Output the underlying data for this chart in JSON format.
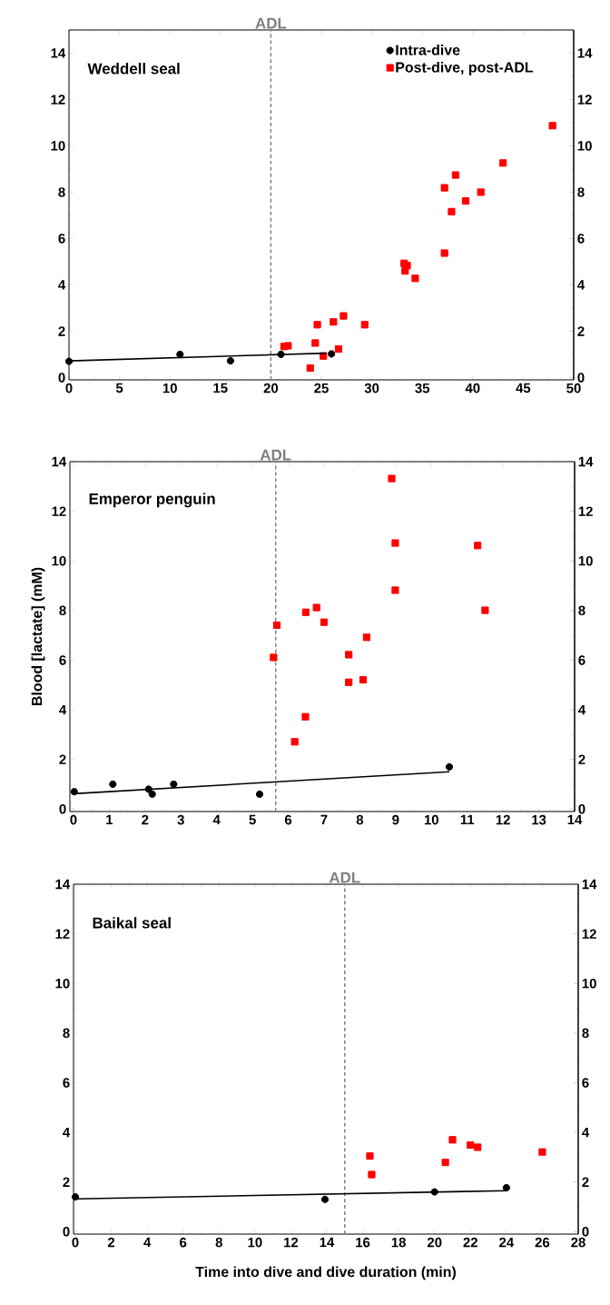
{
  "chart_data": [
    {
      "type": "scatter",
      "title": "Weddell seal",
      "xlim": [
        0,
        50
      ],
      "ylim": [
        -0.1,
        15
      ],
      "y2lim": [
        -0.1,
        15
      ],
      "xticks": [
        0,
        5,
        10,
        15,
        20,
        25,
        30,
        35,
        40,
        45,
        50
      ],
      "yticks": [
        0,
        2,
        4,
        6,
        8,
        10,
        12,
        14
      ],
      "y2ticks": [
        0,
        2,
        4,
        6,
        8,
        10,
        12,
        14
      ],
      "legend": "top right",
      "grid": false,
      "ref_lines": [
        {
          "axis": "x",
          "value": 20,
          "label": "ADL",
          "color": "#808080",
          "line_style": "dashed"
        }
      ],
      "series": [
        {
          "name": "Intra-dive",
          "marker": "circle",
          "color": "#000000",
          "x": [
            0,
            11,
            16,
            21,
            26
          ],
          "values": [
            0.7,
            1.0,
            0.72,
            1.0,
            1.02
          ]
        },
        {
          "name": "Post-dive, post-ADL",
          "marker": "square",
          "color": "#ff0000",
          "x": [
            21.3,
            21.7,
            24.6,
            24.4,
            23.9,
            25.2,
            26.2,
            26.7,
            27.2,
            29.3,
            33.2,
            33.5,
            33.3,
            34.3,
            37.2,
            37.2,
            37.9,
            38.3,
            39.3,
            40.8,
            43.0,
            47.9
          ],
          "values": [
            1.34,
            1.37,
            2.28,
            1.49,
            0.41,
            0.93,
            2.4,
            1.23,
            2.66,
            2.28,
            4.93,
            4.83,
            4.6,
            4.28,
            5.37,
            8.19,
            7.16,
            8.74,
            7.62,
            8.0,
            9.26,
            10.87
          ]
        },
        {
          "type": "line",
          "marker": "none",
          "line_style": "solid",
          "color": "#000000",
          "x": [
            0,
            25.5
          ],
          "values": [
            0.72,
            1.05
          ]
        }
      ]
    },
    {
      "type": "scatter",
      "title": "Emperor penguin",
      "ylabel": "Blood [lactate] (mM)",
      "xlim": [
        -0.1,
        14
      ],
      "ylim": [
        -0.1,
        14
      ],
      "y2lim": [
        -0.1,
        14
      ],
      "xticks": [
        0,
        1,
        2,
        3,
        4,
        5,
        6,
        7,
        8,
        9,
        10,
        11,
        12,
        13,
        14
      ],
      "yticks": [
        0,
        2,
        4,
        6,
        8,
        10,
        12,
        14
      ],
      "y2ticks": [
        0,
        2,
        4,
        6,
        8,
        10,
        12,
        14
      ],
      "grid": false,
      "ref_lines": [
        {
          "axis": "x",
          "value": 5.65,
          "label": "ADL",
          "color": "#808080",
          "line_style": "dashed"
        }
      ],
      "series": [
        {
          "marker": "circle",
          "color": "#000000",
          "x": [
            0.02,
            1.1,
            2.1,
            2.2,
            2.8,
            5.2,
            10.5
          ],
          "values": [
            0.7,
            1.0,
            0.8,
            0.6,
            1.0,
            0.6,
            1.7
          ]
        },
        {
          "marker": "square",
          "color": "#ff0000",
          "x": [
            5.59,
            5.68,
            6.18,
            6.48,
            6.49,
            6.79,
            7.0,
            7.69,
            7.69,
            8.09,
            8.19,
            8.89,
            8.99,
            8.99,
            11.29,
            11.5
          ],
          "values": [
            6.11,
            7.41,
            2.71,
            3.72,
            7.93,
            8.12,
            7.53,
            6.22,
            5.11,
            5.21,
            6.92,
            13.32,
            10.72,
            8.82,
            10.62,
            8.01
          ]
        },
        {
          "type": "line",
          "marker": "none",
          "line_style": "solid",
          "color": "#000000",
          "x": [
            0,
            10.5
          ],
          "values": [
            0.62,
            1.5
          ]
        }
      ]
    },
    {
      "type": "scatter",
      "title": "Baikal seal",
      "xlabel": "Time into dive and dive duration (min)",
      "xlim": [
        -0.1,
        28
      ],
      "ylim": [
        -0.1,
        14
      ],
      "y2lim": [
        -0.1,
        14
      ],
      "xticks": [
        0,
        2,
        4,
        6,
        8,
        10,
        12,
        14,
        16,
        18,
        20,
        22,
        24,
        26,
        28
      ],
      "yticks": [
        0,
        2,
        4,
        6,
        8,
        10,
        12,
        14
      ],
      "y2ticks": [
        0,
        2,
        4,
        6,
        8,
        10,
        12,
        14
      ],
      "grid": false,
      "ref_lines": [
        {
          "axis": "x",
          "value": 15,
          "label": "ADL",
          "color": "#808080",
          "line_style": "dashed"
        }
      ],
      "series": [
        {
          "marker": "circle",
          "color": "#000000",
          "x": [
            0,
            13.9,
            20,
            24
          ],
          "values": [
            1.4,
            1.3,
            1.6,
            1.77
          ]
        },
        {
          "marker": "square",
          "color": "#ff0000",
          "x": [
            16.4,
            16.5,
            20.6,
            21.0,
            22.0,
            22.4,
            26.0
          ],
          "values": [
            3.05,
            2.3,
            2.79,
            3.7,
            3.49,
            3.4,
            3.21
          ]
        },
        {
          "type": "line",
          "marker": "none",
          "line_style": "solid",
          "color": "#000000",
          "x": [
            0,
            24
          ],
          "values": [
            1.32,
            1.65
          ]
        }
      ]
    }
  ]
}
